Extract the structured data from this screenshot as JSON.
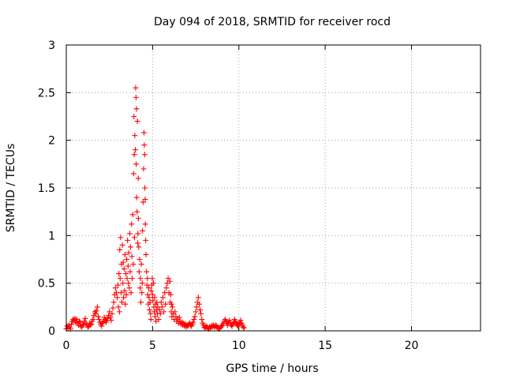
{
  "chart_data": {
    "type": "scatter",
    "title": "Day 094 of 2018, SRMTID for receiver rocd",
    "xlabel": "GPS time / hours",
    "ylabel": "SRMTID / TECUs",
    "xlim": [
      0,
      24
    ],
    "ylim": [
      0,
      3
    ],
    "xticks": [
      0,
      5,
      10,
      15,
      20
    ],
    "xtick_labels": [
      "0",
      "5",
      "10",
      "15",
      "20"
    ],
    "yticks": [
      0,
      0.5,
      1,
      1.5,
      2,
      2.5,
      3
    ],
    "ytick_labels": [
      "0",
      "0.5",
      "1",
      "1.5",
      "2",
      "2.5",
      "3"
    ],
    "grid": true,
    "marker": "+",
    "color": "#ff0000",
    "series": [
      {
        "name": "SRMTID",
        "points": [
          [
            0.0,
            0.02
          ],
          [
            0.05,
            0.05
          ],
          [
            0.1,
            0.03
          ],
          [
            0.15,
            0.06
          ],
          [
            0.2,
            0.04
          ],
          [
            0.25,
            0.02
          ],
          [
            0.3,
            0.07
          ],
          [
            0.35,
            0.1
          ],
          [
            0.4,
            0.12
          ],
          [
            0.45,
            0.11
          ],
          [
            0.5,
            0.13
          ],
          [
            0.55,
            0.09
          ],
          [
            0.6,
            0.12
          ],
          [
            0.65,
            0.08
          ],
          [
            0.7,
            0.06
          ],
          [
            0.75,
            0.1
          ],
          [
            0.8,
            0.09
          ],
          [
            0.85,
            0.05
          ],
          [
            0.9,
            0.04
          ],
          [
            0.95,
            0.06
          ],
          [
            1.0,
            0.07
          ],
          [
            1.05,
            0.1
          ],
          [
            1.1,
            0.13
          ],
          [
            1.15,
            0.08
          ],
          [
            1.2,
            0.06
          ],
          [
            1.25,
            0.04
          ],
          [
            1.3,
            0.05
          ],
          [
            1.35,
            0.08
          ],
          [
            1.4,
            0.06
          ],
          [
            1.45,
            0.07
          ],
          [
            1.5,
            0.1
          ],
          [
            1.55,
            0.12
          ],
          [
            1.6,
            0.16
          ],
          [
            1.65,
            0.2
          ],
          [
            1.7,
            0.18
          ],
          [
            1.75,
            0.21
          ],
          [
            1.8,
            0.25
          ],
          [
            1.85,
            0.15
          ],
          [
            1.9,
            0.12
          ],
          [
            1.95,
            0.09
          ],
          [
            2.0,
            0.07
          ],
          [
            2.05,
            0.05
          ],
          [
            2.1,
            0.08
          ],
          [
            2.15,
            0.1
          ],
          [
            2.2,
            0.14
          ],
          [
            2.25,
            0.12
          ],
          [
            2.3,
            0.09
          ],
          [
            2.35,
            0.11
          ],
          [
            2.4,
            0.13
          ],
          [
            2.45,
            0.16
          ],
          [
            2.5,
            0.2
          ],
          [
            2.55,
            0.14
          ],
          [
            2.6,
            0.11
          ],
          [
            2.65,
            0.18
          ],
          [
            2.7,
            0.24
          ],
          [
            2.75,
            0.3
          ],
          [
            2.8,
            0.38
          ],
          [
            2.85,
            0.45
          ],
          [
            2.9,
            0.4
          ],
          [
            2.95,
            0.35
          ],
          [
            3.0,
            0.48
          ],
          [
            3.02,
            0.25
          ],
          [
            3.05,
            0.6
          ],
          [
            3.08,
            0.2
          ],
          [
            3.1,
            0.85
          ],
          [
            3.12,
            0.55
          ],
          [
            3.15,
            0.98
          ],
          [
            3.18,
            0.4
          ],
          [
            3.2,
            0.7
          ],
          [
            3.22,
            0.3
          ],
          [
            3.25,
            0.9
          ],
          [
            3.28,
            0.5
          ],
          [
            3.3,
            0.72
          ],
          [
            3.32,
            0.35
          ],
          [
            3.35,
            0.65
          ],
          [
            3.38,
            0.42
          ],
          [
            3.4,
            0.8
          ],
          [
            3.42,
            0.28
          ],
          [
            3.45,
            0.6
          ],
          [
            3.48,
            0.38
          ],
          [
            3.5,
            0.75
          ],
          [
            3.52,
            0.55
          ],
          [
            3.55,
            0.95
          ],
          [
            3.58,
            0.68
          ],
          [
            3.6,
            0.5
          ],
          [
            3.62,
            0.82
          ],
          [
            3.65,
            0.45
          ],
          [
            3.68,
            1.02
          ],
          [
            3.7,
            0.62
          ],
          [
            3.72,
            0.88
          ],
          [
            3.75,
            0.4
          ],
          [
            3.78,
            1.12
          ],
          [
            3.8,
            0.78
          ],
          [
            3.82,
            0.55
          ],
          [
            3.85,
            1.22
          ],
          [
            3.88,
            0.7
          ],
          [
            3.9,
            1.65
          ],
          [
            3.92,
            2.25
          ],
          [
            3.94,
            1.85
          ],
          [
            3.95,
            0.98
          ],
          [
            3.97,
            2.05
          ],
          [
            4.0,
            1.9
          ],
          [
            4.02,
            2.55
          ],
          [
            4.04,
            2.45
          ],
          [
            4.05,
            1.75
          ],
          [
            4.07,
            2.33
          ],
          [
            4.08,
            1.4
          ],
          [
            4.1,
            1.25
          ],
          [
            4.12,
            2.2
          ],
          [
            4.14,
            0.92
          ],
          [
            4.15,
            1.02
          ],
          [
            4.17,
            1.6
          ],
          [
            4.18,
            1.18
          ],
          [
            4.2,
            0.88
          ],
          [
            4.22,
            0.62
          ],
          [
            4.25,
            0.75
          ],
          [
            4.28,
            0.45
          ],
          [
            4.3,
            0.55
          ],
          [
            4.32,
            0.3
          ],
          [
            4.35,
            0.7
          ],
          [
            4.38,
            0.4
          ],
          [
            4.4,
            0.5
          ],
          [
            4.42,
            1.05
          ],
          [
            4.45,
            1.35
          ],
          [
            4.48,
            1.7
          ],
          [
            4.5,
            2.08
          ],
          [
            4.52,
            1.95
          ],
          [
            4.54,
            1.85
          ],
          [
            4.55,
            1.5
          ],
          [
            4.57,
            1.38
          ],
          [
            4.58,
            1.12
          ],
          [
            4.6,
            0.95
          ],
          [
            4.62,
            0.8
          ],
          [
            4.65,
            0.62
          ],
          [
            4.68,
            0.48
          ],
          [
            4.7,
            0.55
          ],
          [
            4.72,
            0.38
          ],
          [
            4.75,
            0.28
          ],
          [
            4.78,
            0.45
          ],
          [
            4.8,
            0.35
          ],
          [
            4.82,
            0.22
          ],
          [
            4.85,
            0.3
          ],
          [
            4.88,
            0.18
          ],
          [
            4.9,
            0.12
          ],
          [
            4.92,
            0.42
          ],
          [
            4.95,
            0.48
          ],
          [
            4.98,
            0.55
          ],
          [
            5.0,
            0.38
          ],
          [
            5.02,
            0.32
          ],
          [
            5.05,
            0.5
          ],
          [
            5.08,
            0.25
          ],
          [
            5.1,
            0.2
          ],
          [
            5.12,
            0.35
          ],
          [
            5.15,
            0.15
          ],
          [
            5.18,
            0.28
          ],
          [
            5.2,
            0.1
          ],
          [
            5.22,
            0.22
          ],
          [
            5.25,
            0.3
          ],
          [
            5.28,
            0.18
          ],
          [
            5.3,
            0.25
          ],
          [
            5.35,
            0.12
          ],
          [
            5.4,
            0.22
          ],
          [
            5.45,
            0.18
          ],
          [
            5.5,
            0.3
          ],
          [
            5.55,
            0.25
          ],
          [
            5.6,
            0.35
          ],
          [
            5.65,
            0.2
          ],
          [
            5.7,
            0.4
          ],
          [
            5.75,
            0.28
          ],
          [
            5.8,
            0.45
          ],
          [
            5.85,
            0.5
          ],
          [
            5.9,
            0.55
          ],
          [
            5.95,
            0.4
          ],
          [
            6.0,
            0.52
          ],
          [
            6.02,
            0.3
          ],
          [
            6.05,
            0.38
          ],
          [
            6.08,
            0.2
          ],
          [
            6.1,
            0.28
          ],
          [
            6.12,
            0.15
          ],
          [
            6.15,
            0.25
          ],
          [
            6.2,
            0.18
          ],
          [
            6.25,
            0.12
          ],
          [
            6.3,
            0.2
          ],
          [
            6.35,
            0.15
          ],
          [
            6.4,
            0.1
          ],
          [
            6.45,
            0.12
          ],
          [
            6.5,
            0.08
          ],
          [
            6.55,
            0.14
          ],
          [
            6.6,
            0.1
          ],
          [
            6.65,
            0.07
          ],
          [
            6.7,
            0.09
          ],
          [
            6.75,
            0.06
          ],
          [
            6.8,
            0.08
          ],
          [
            6.85,
            0.05
          ],
          [
            6.9,
            0.07
          ],
          [
            6.95,
            0.04
          ],
          [
            7.0,
            0.06
          ],
          [
            7.05,
            0.05
          ],
          [
            7.1,
            0.07
          ],
          [
            7.15,
            0.08
          ],
          [
            7.2,
            0.06
          ],
          [
            7.25,
            0.05
          ],
          [
            7.3,
            0.07
          ],
          [
            7.35,
            0.09
          ],
          [
            7.4,
            0.12
          ],
          [
            7.45,
            0.15
          ],
          [
            7.5,
            0.2
          ],
          [
            7.55,
            0.25
          ],
          [
            7.6,
            0.3
          ],
          [
            7.65,
            0.35
          ],
          [
            7.7,
            0.28
          ],
          [
            7.75,
            0.22
          ],
          [
            7.8,
            0.18
          ],
          [
            7.85,
            0.12
          ],
          [
            7.9,
            0.08
          ],
          [
            7.95,
            0.06
          ],
          [
            8.0,
            0.04
          ],
          [
            8.05,
            0.03
          ],
          [
            8.1,
            0.05
          ],
          [
            8.15,
            0.04
          ],
          [
            8.2,
            0.03
          ],
          [
            8.25,
            0.02
          ],
          [
            8.3,
            0.04
          ],
          [
            8.35,
            0.03
          ],
          [
            8.4,
            0.05
          ],
          [
            8.45,
            0.04
          ],
          [
            8.5,
            0.06
          ],
          [
            8.55,
            0.05
          ],
          [
            8.6,
            0.04
          ],
          [
            8.65,
            0.06
          ],
          [
            8.7,
            0.05
          ],
          [
            8.75,
            0.03
          ],
          [
            8.8,
            0.04
          ],
          [
            8.85,
            0.02
          ],
          [
            8.9,
            0.03
          ],
          [
            8.95,
            0.04
          ],
          [
            9.0,
            0.05
          ],
          [
            9.05,
            0.06
          ],
          [
            9.1,
            0.08
          ],
          [
            9.15,
            0.1
          ],
          [
            9.2,
            0.12
          ],
          [
            9.25,
            0.1
          ],
          [
            9.3,
            0.08
          ],
          [
            9.35,
            0.06
          ],
          [
            9.4,
            0.09
          ],
          [
            9.45,
            0.11
          ],
          [
            9.5,
            0.08
          ],
          [
            9.55,
            0.06
          ],
          [
            9.6,
            0.05
          ],
          [
            9.65,
            0.07
          ],
          [
            9.7,
            0.09
          ],
          [
            9.75,
            0.12
          ],
          [
            9.8,
            0.1
          ],
          [
            9.85,
            0.08
          ],
          [
            9.9,
            0.06
          ],
          [
            9.95,
            0.05
          ],
          [
            10.0,
            0.07
          ],
          [
            10.05,
            0.09
          ],
          [
            10.1,
            0.11
          ],
          [
            10.15,
            0.08
          ],
          [
            10.2,
            0.06
          ],
          [
            10.25,
            0.04
          ],
          [
            10.3,
            0.03
          ]
        ]
      }
    ]
  }
}
